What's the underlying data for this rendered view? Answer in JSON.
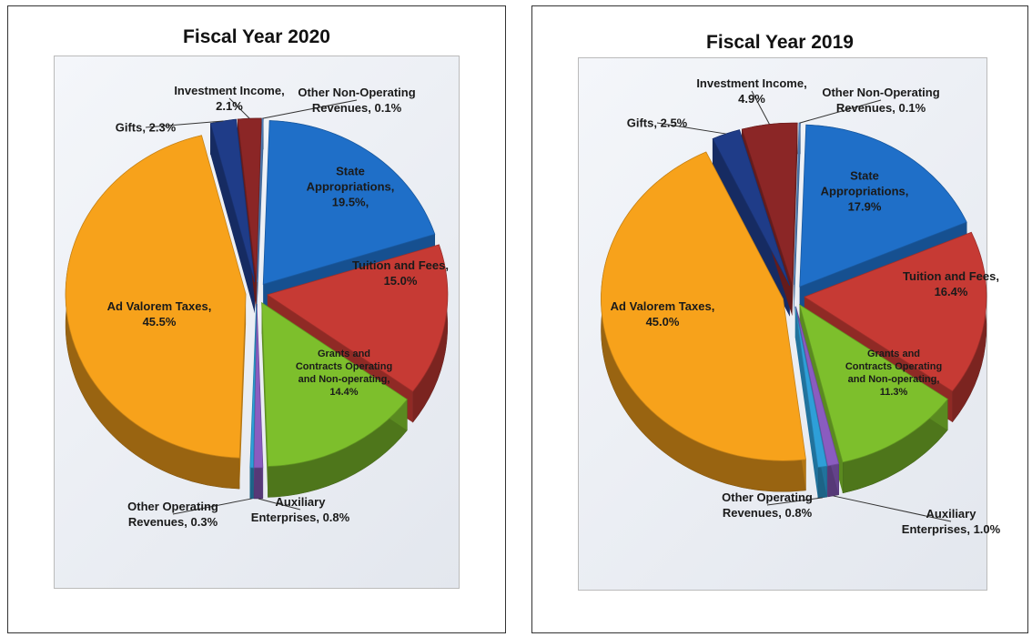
{
  "chart_data": [
    {
      "type": "pie",
      "title": "Fiscal Year 2020",
      "categories": [
        "State Appropriations,",
        "Tuition and Fees,",
        "Grants and Contracts Operating and Non-operating,",
        "Auxiliary Enterprises,",
        "Other Operating Revenues,",
        "Ad Valorem Taxes,",
        "Gifts,",
        "Investment Income,",
        "Other Non-Operating Revenues,"
      ],
      "values": [
        19.5,
        15,
        14.4,
        0.8,
        0.3,
        45.5,
        2.3,
        2.1,
        0.1
      ],
      "value_labels": [
        "19.5%,",
        "15.0%",
        "14.4%",
        "0.8%",
        "0.3%",
        "45.5%",
        "2.3%",
        "2.1%",
        "0.1%"
      ],
      "colors": [
        "#1f6fc8",
        "#c63a34",
        "#7dbf2c",
        "#8a5cc0",
        "#2e9fd8",
        "#f7a21b",
        "#1f3c88",
        "#8b2626",
        "#5a8fd0"
      ]
    },
    {
      "type": "pie",
      "title": "Fiscal Year 2019",
      "categories": [
        "State Appropriations,",
        "Tuition and Fees,",
        "Grants and Contracts Operating and Non-operating,",
        "Auxiliary Enterprises,",
        "Other Operating Revenues,",
        "Ad Valorem Taxes,",
        "Gifts,",
        "Investment Income,",
        "Other Non-Operating Revenues,"
      ],
      "values": [
        17.9,
        16.4,
        11.3,
        1,
        0.8,
        45,
        2.5,
        4.9,
        0.1
      ],
      "value_labels": [
        "17.9%",
        "16.4%",
        "11.3%",
        "1.0%",
        "0.8%",
        "45.0%",
        "2.5%",
        "4.9%",
        "0.1%"
      ],
      "colors": [
        "#1f6fc8",
        "#c63a34",
        "#7dbf2c",
        "#8a5cc0",
        "#2e9fd8",
        "#f7a21b",
        "#1f3c88",
        "#8b2626",
        "#5a8fd0"
      ]
    }
  ]
}
